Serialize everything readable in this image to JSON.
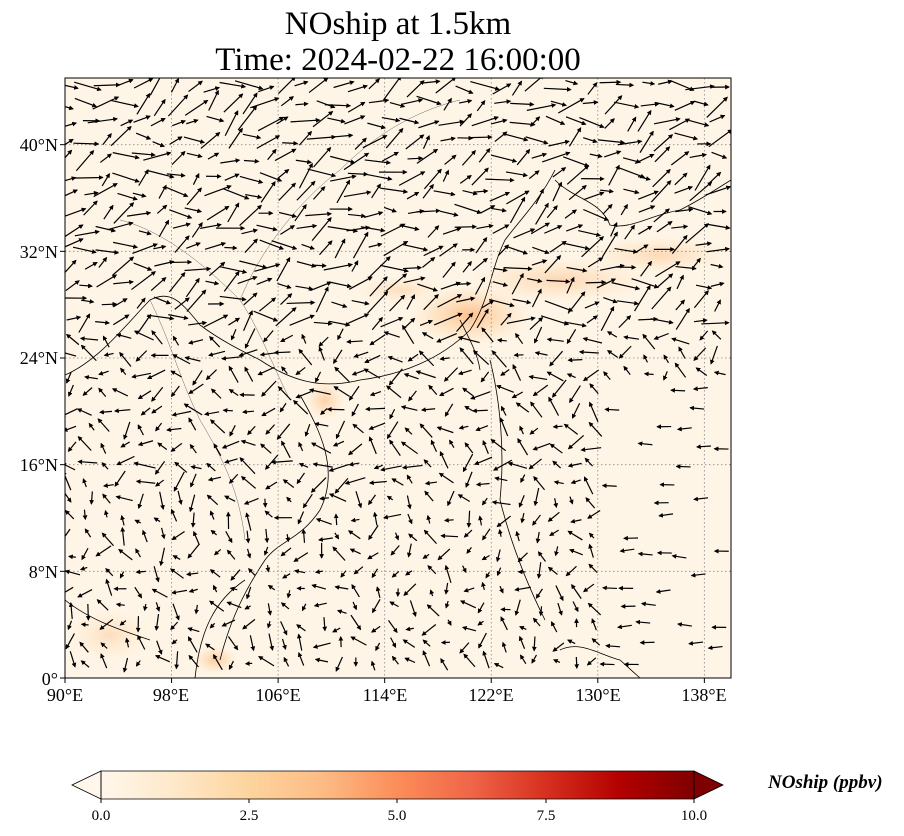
{
  "title_line1": "NOship at 1.5km",
  "title_line2": "Time: 2024-02-22 16:00:00",
  "map": {
    "lon_range": [
      90,
      140
    ],
    "lat_range": [
      0,
      45
    ],
    "lon_ticks": [
      "90°E",
      "98°E",
      "106°E",
      "114°E",
      "122°E",
      "130°E",
      "138°E"
    ],
    "lat_ticks": [
      "0°",
      "8°N",
      "16°N",
      "24°N",
      "32°N",
      "40°N"
    ],
    "gridlines": true,
    "field": "NOship concentration with wind vectors"
  },
  "colorbar": {
    "label": "NOship (ppbv)",
    "min": 0,
    "max": 10,
    "ticks": [
      "0.0",
      "2.5",
      "5.0",
      "7.5",
      "10.0"
    ],
    "colormap": "OrRd",
    "extend": "both",
    "colors": [
      "#fff7ec",
      "#fee8c8",
      "#fdd49e",
      "#fdbb84",
      "#fc8d59",
      "#ef6548",
      "#d7301f",
      "#b30000",
      "#7f0000"
    ]
  }
}
